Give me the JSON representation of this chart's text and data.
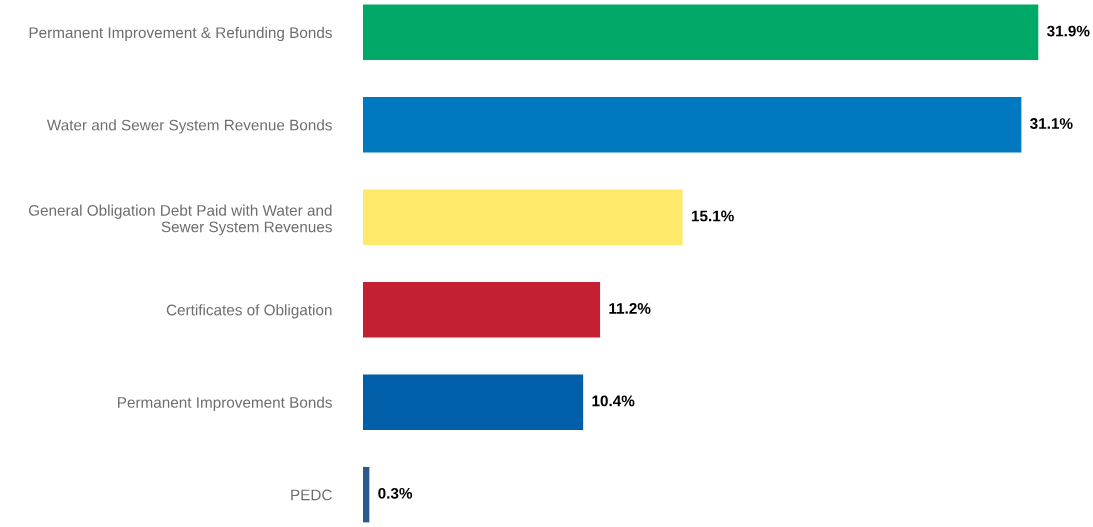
{
  "chart_data": {
    "type": "bar",
    "orientation": "horizontal",
    "categories": [
      "Permanent Improvement & Refunding Bonds",
      "Water and Sewer System Revenue Bonds",
      "General Obligation Debt Paid with Water and Sewer System Revenues",
      "Certificates of Obligation",
      "Permanent Improvement Bonds",
      "PEDC"
    ],
    "values": [
      31.9,
      31.1,
      15.1,
      11.2,
      10.4,
      0.3
    ],
    "value_labels": [
      "31.9%",
      "31.1%",
      "15.1%",
      "11.2%",
      "10.4%",
      "0.3%"
    ],
    "colors": [
      "#00a968",
      "#0079c1",
      "#ffe96a",
      "#c42033",
      "#005fa8",
      "#2c5a8c"
    ],
    "grid": false,
    "legend": false
  }
}
